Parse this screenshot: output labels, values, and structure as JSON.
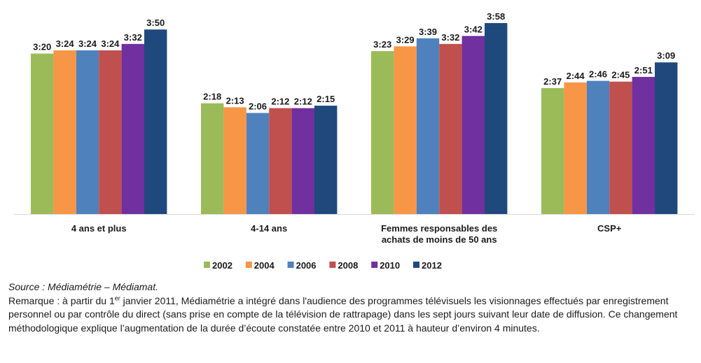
{
  "chart_data": {
    "type": "bar",
    "categories": [
      [
        "4 ans et plus"
      ],
      [
        "4-14 ans"
      ],
      [
        "Femmes responsables des",
        "achats de moins de 50 ans"
      ],
      [
        "CSP+"
      ]
    ],
    "series": [
      {
        "name": "2002",
        "color": "#9BBB59",
        "labels": [
          "3:20",
          "2:18",
          "3:23",
          "2:37"
        ],
        "values": [
          200,
          138,
          203,
          157
        ]
      },
      {
        "name": "2004",
        "color": "#F79646",
        "labels": [
          "3:24",
          "2:13",
          "3:29",
          "2:44"
        ],
        "values": [
          204,
          133,
          209,
          164
        ]
      },
      {
        "name": "2006",
        "color": "#4F81BD",
        "labels": [
          "3:24",
          "2:06",
          "3:39",
          "2:46"
        ],
        "values": [
          204,
          126,
          219,
          166
        ]
      },
      {
        "name": "2008",
        "color": "#C0504D",
        "labels": [
          "3:24",
          "2:12",
          "3:32",
          "2:45"
        ],
        "values": [
          204,
          132,
          212,
          165
        ]
      },
      {
        "name": "2010",
        "color": "#7030A0",
        "labels": [
          "3:32",
          "2:12",
          "3:42",
          "2:51"
        ],
        "values": [
          212,
          132,
          222,
          171
        ]
      },
      {
        "name": "2012",
        "color": "#1F497D",
        "labels": [
          "3:50",
          "2:15",
          "3:58",
          "3:09"
        ],
        "values": [
          230,
          135,
          238,
          189
        ]
      }
    ],
    "ylim": [
      0,
      238
    ],
    "grid": false,
    "legend": "bottom"
  },
  "notes": {
    "source": "Source : Médiamétrie – Médiamat.",
    "remark_before_sup": "Remarque : à partir du 1",
    "remark_sup": "er",
    "remark_after_sup": " janvier 2011, Médiamétrie a intégré dans l'audience des programmes télévisuels les visionnages effectués par enregistrement personnel ou par contrôle du direct (sans prise en compte de la télévision de rattrapage) dans les sept jours suivant leur date de diffusion. Ce changement méthodologique explique l’augmentation de la durée d’écoute constatée entre 2010 et 2011 à hauteur d’environ 4 minutes."
  }
}
